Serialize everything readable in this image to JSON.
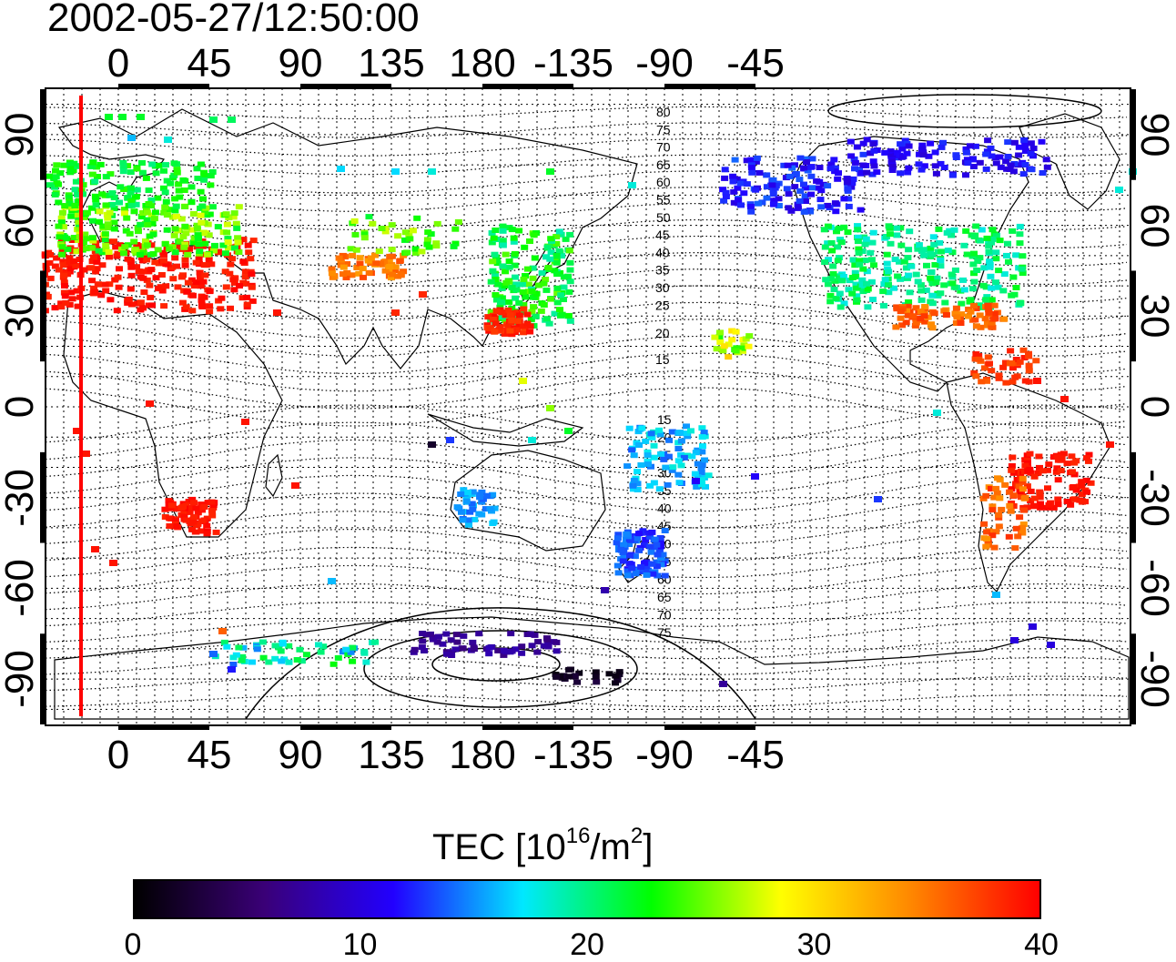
{
  "timestamp": "2002-05-27/12:50:00",
  "map": {
    "lon_ticks": [
      "0",
      "45",
      "90",
      "135",
      "180",
      "-135",
      "-90",
      "-45"
    ],
    "lat_ticks": [
      "90",
      "60",
      "30",
      "0",
      "-30",
      "-60",
      "-90"
    ],
    "contour_labels_north": [
      "80",
      "75",
      "70",
      "65",
      "60",
      "55",
      "50",
      "45",
      "40",
      "35",
      "30",
      "25",
      "20",
      "15"
    ],
    "contour_labels_south": [
      "15",
      "20",
      "25",
      "30",
      "35",
      "40",
      "45",
      "50",
      "55",
      "60",
      "65",
      "70",
      "75"
    ],
    "colors": {
      "background": "#ffffff",
      "line": "#000000",
      "terminator": "#ff0000"
    }
  },
  "colorbar": {
    "title_prefix": "TEC  [10",
    "title_exp1": "16",
    "title_mid": "/m",
    "title_exp2": "2",
    "title_suffix": "]",
    "ticks": [
      "0",
      "10",
      "20",
      "30",
      "40"
    ],
    "range": [
      0,
      40
    ],
    "colormap": [
      "#000000",
      "#3a0077",
      "#2200ff",
      "#00e8ff",
      "#00ff00",
      "#ffff00",
      "#ff8800",
      "#ff0000"
    ]
  }
}
